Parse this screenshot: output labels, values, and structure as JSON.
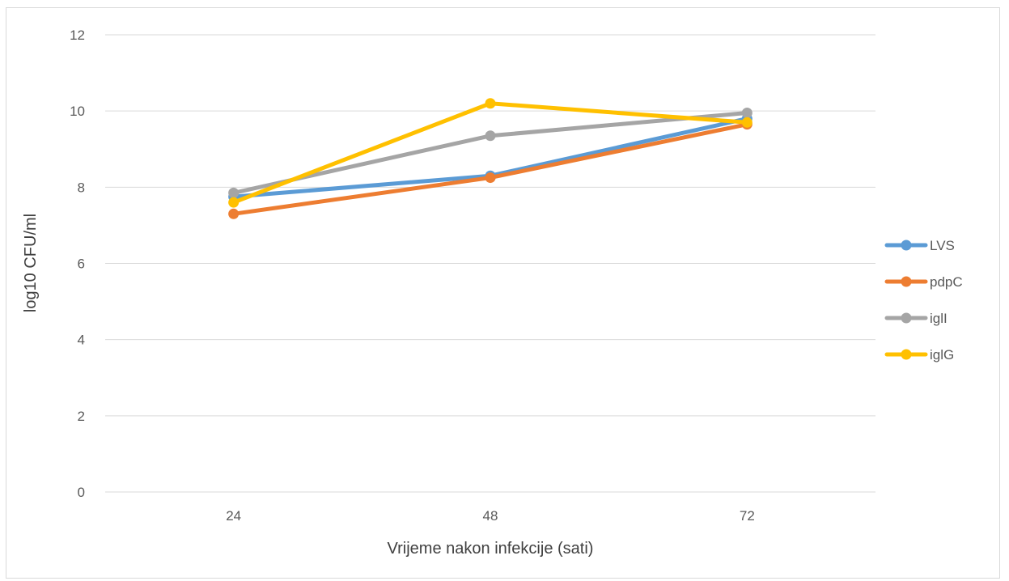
{
  "chart_data": {
    "type": "line",
    "categories": [
      "24",
      "48",
      "72"
    ],
    "xlabel": "Vrijeme nakon infekcije (sati)",
    "ylabel": "log10 CFU/ml",
    "ylim": [
      0,
      12
    ],
    "yticks": [
      "0",
      "2",
      "4",
      "6",
      "8",
      "10",
      "12"
    ],
    "grid": true,
    "legend_position": "right",
    "series": [
      {
        "name": "LVS",
        "color": "#5B9BD5",
        "values": [
          7.75,
          8.3,
          9.8
        ]
      },
      {
        "name": "pdpC",
        "color": "#ED7D31",
        "values": [
          7.3,
          8.25,
          9.65
        ]
      },
      {
        "name": "iglI",
        "color": "#A5A5A5",
        "values": [
          7.85,
          9.35,
          9.95
        ]
      },
      {
        "name": "iglG",
        "color": "#FFC000",
        "values": [
          7.6,
          10.2,
          9.7
        ]
      }
    ]
  }
}
